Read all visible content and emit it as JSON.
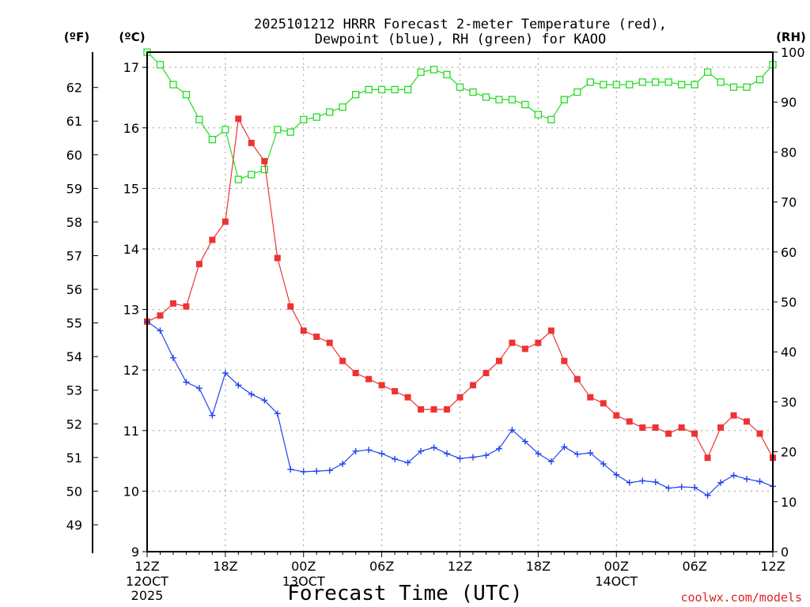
{
  "chart_data": {
    "type": "line",
    "title_line1": "2025101212 HRRR Forecast 2-meter Temperature (red),",
    "title_line2": "Dewpoint (blue), RH (green) for KAOO",
    "xlabel": "Forecast Time (UTC)",
    "credit": "coolwx.com/models",
    "left_axis_f_label": "(ºF)",
    "left_axis_c_label": "(ºC)",
    "right_axis_label": "(RH)",
    "x_hours_range": [
      0,
      48
    ],
    "celsius_range": [
      9,
      17.25
    ],
    "rh_range": [
      0,
      100
    ],
    "celsius_ticks": [
      "9",
      "10",
      "11",
      "12",
      "13",
      "14",
      "15",
      "16",
      "17"
    ],
    "fahrenheit_ticks": [
      "49",
      "50",
      "51",
      "52",
      "53",
      "54",
      "55",
      "56",
      "57",
      "58",
      "59",
      "60",
      "61",
      "62"
    ],
    "rh_ticks": [
      "0",
      "10",
      "20",
      "30",
      "40",
      "50",
      "60",
      "70",
      "80",
      "90",
      "100"
    ],
    "x_ticks": [
      {
        "hour": 0,
        "label": "12Z",
        "sub1": "12OCT",
        "sub2": "2025"
      },
      {
        "hour": 6,
        "label": "18Z",
        "sub1": "",
        "sub2": ""
      },
      {
        "hour": 12,
        "label": "00Z",
        "sub1": "13OCT",
        "sub2": ""
      },
      {
        "hour": 18,
        "label": "06Z",
        "sub1": "",
        "sub2": ""
      },
      {
        "hour": 24,
        "label": "12Z",
        "sub1": "",
        "sub2": ""
      },
      {
        "hour": 30,
        "label": "18Z",
        "sub1": "",
        "sub2": ""
      },
      {
        "hour": 36,
        "label": "00Z",
        "sub1": "14OCT",
        "sub2": ""
      },
      {
        "hour": 42,
        "label": "06Z",
        "sub1": "",
        "sub2": ""
      },
      {
        "hour": 48,
        "label": "12Z",
        "sub1": "",
        "sub2": ""
      }
    ],
    "series": [
      {
        "name": "Temperature",
        "unit": "C",
        "color": "#ee3333",
        "marker": "filled-square",
        "values": [
          12.8,
          12.9,
          13.1,
          13.05,
          13.75,
          14.15,
          14.45,
          16.15,
          15.75,
          15.45,
          13.85,
          13.05,
          12.65,
          12.55,
          12.45,
          12.15,
          11.95,
          11.85,
          11.75,
          11.65,
          11.55,
          11.35,
          11.35,
          11.35,
          11.55,
          11.75,
          11.95,
          12.15,
          12.45,
          12.35,
          12.45,
          12.65,
          12.15,
          11.85,
          11.55,
          11.45,
          11.25,
          11.15,
          11.05,
          11.05,
          10.95,
          11.05,
          10.95,
          10.55,
          11.05,
          11.25,
          11.15,
          10.95,
          10.55
        ]
      },
      {
        "name": "Dewpoint",
        "unit": "C",
        "color": "#2244ee",
        "marker": "plus",
        "values": [
          12.8,
          12.65,
          12.2,
          11.8,
          11.7,
          11.25,
          11.95,
          11.75,
          11.6,
          11.5,
          11.28,
          10.36,
          10.32,
          10.33,
          10.34,
          10.45,
          10.66,
          10.68,
          10.62,
          10.53,
          10.47,
          10.66,
          10.72,
          10.62,
          10.54,
          10.56,
          10.59,
          10.7,
          11.01,
          10.82,
          10.62,
          10.49,
          10.73,
          10.61,
          10.63,
          10.45,
          10.27,
          10.14,
          10.17,
          10.15,
          10.05,
          10.07,
          10.06,
          9.93,
          10.14,
          10.26,
          10.2,
          10.16,
          10.08
        ]
      },
      {
        "name": "RH",
        "unit": "%",
        "color": "#22dd22",
        "marker": "open-square",
        "values": [
          100,
          97.5,
          93.5,
          91.5,
          86.5,
          82.5,
          84.5,
          74.5,
          75.5,
          76.5,
          84.5,
          84,
          86.5,
          87,
          88,
          89,
          91.5,
          92.5,
          92.5,
          92.5,
          92.5,
          96,
          96.5,
          95.5,
          93,
          92,
          91,
          90.5,
          90.5,
          89.5,
          87.5,
          86.5,
          90.5,
          92,
          94,
          93.5,
          93.5,
          93.5,
          94,
          94,
          94,
          93.5,
          93.5,
          96,
          94,
          93,
          93,
          94.5,
          97.5
        ]
      }
    ]
  }
}
